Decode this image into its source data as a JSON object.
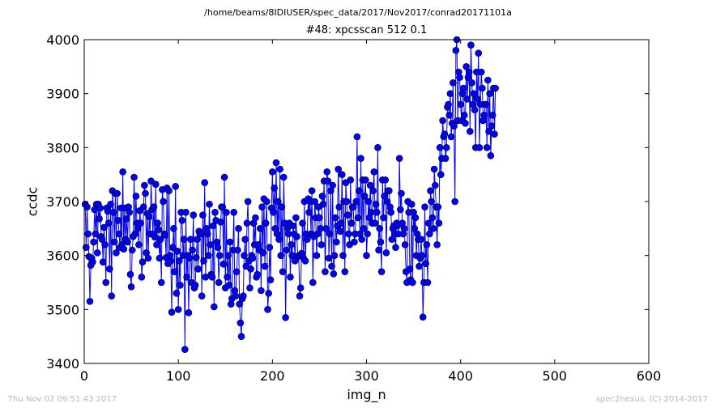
{
  "chart_data": {
    "type": "line",
    "suptitle": "/home/beams/8IDIUSER/spec_data/2017/Nov2017/conrad20171101a",
    "title": "#48: xpcsscan 512 0.1",
    "xlabel": "img_n",
    "ylabel": "ccdc",
    "xlim": [
      0,
      600
    ],
    "ylim": [
      3400,
      4000
    ],
    "xticks": [
      0,
      100,
      200,
      300,
      400,
      500,
      600
    ],
    "yticks": [
      3400,
      3500,
      3600,
      3700,
      3800,
      3900,
      4000
    ],
    "grid": false,
    "marker": "circle",
    "series": [
      {
        "color": "#0000ff",
        "x_start": 1,
        "y": [
          3695,
          3615,
          3690,
          3640,
          3598,
          3515,
          3582,
          3595,
          3588,
          3625,
          3685,
          3640,
          3695,
          3605,
          3695,
          3668,
          3688,
          3635,
          3630,
          3588,
          3652,
          3620,
          3550,
          3688,
          3682,
          3660,
          3575,
          3695,
          3525,
          3720,
          3680,
          3625,
          3715,
          3605,
          3715,
          3665,
          3640,
          3615,
          3688,
          3620,
          3755,
          3612,
          3688,
          3630,
          3668,
          3625,
          3690,
          3680,
          3565,
          3542,
          3610,
          3635,
          3745,
          3640,
          3710,
          3660,
          3650,
          3620,
          3683,
          3660,
          3560,
          3588,
          3690,
          3730,
          3715,
          3605,
          3678,
          3595,
          3672,
          3640,
          3738,
          3685,
          3640,
          3690,
          3634,
          3732,
          3620,
          3660,
          3648,
          3595,
          3630,
          3550,
          3722,
          3700,
          3640,
          3638,
          3596,
          3725,
          3585,
          3720,
          3600,
          3590,
          3495,
          3615,
          3650,
          3570,
          3728,
          3530,
          3608,
          3500,
          3590,
          3545,
          3680,
          3665,
          3600,
          3630,
          3426,
          3680,
          3560,
          3600,
          3494,
          3595,
          3630,
          3550,
          3610,
          3675,
          3540,
          3545,
          3596,
          3630,
          3575,
          3645,
          3640,
          3640,
          3525,
          3675,
          3590,
          3735,
          3560,
          3650,
          3640,
          3600,
          3695,
          3620,
          3565,
          3560,
          3655,
          3505,
          3680,
          3665,
          3625,
          3615,
          3550,
          3600,
          3662,
          3690,
          3690,
          3584,
          3745,
          3540,
          3680,
          3560,
          3600,
          3545,
          3625,
          3510,
          3520,
          3610,
          3680,
          3535,
          3525,
          3570,
          3610,
          3650,
          3510,
          3475,
          3450,
          3520,
          3525,
          3600,
          3630,
          3580,
          3660,
          3700,
          3590,
          3540,
          3575,
          3600,
          3595,
          3660,
          3620,
          3670,
          3560,
          3565,
          3620,
          3610,
          3650,
          3535,
          3690,
          3605,
          3705,
          3580,
          3660,
          3700,
          3500,
          3530,
          3615,
          3555,
          3688,
          3755,
          3680,
          3725,
          3650,
          3772,
          3640,
          3700,
          3630,
          3760,
          3600,
          3690,
          3570,
          3745,
          3660,
          3485,
          3610,
          3650,
          3640,
          3660,
          3560,
          3620,
          3600,
          3655,
          3640,
          3590,
          3670,
          3635,
          3598,
          3600,
          3525,
          3540,
          3604,
          3660,
          3595,
          3700,
          3590,
          3640,
          3630,
          3705,
          3680,
          3700,
          3640,
          3720,
          3550,
          3635,
          3700,
          3670,
          3600,
          3640,
          3690,
          3670,
          3650,
          3620,
          3710,
          3695,
          3738,
          3570,
          3650,
          3755,
          3738,
          3595,
          3640,
          3720,
          3580,
          3730,
          3566,
          3600,
          3670,
          3625,
          3655,
          3760,
          3690,
          3645,
          3660,
          3750,
          3600,
          3700,
          3570,
          3735,
          3700,
          3675,
          3640,
          3620,
          3740,
          3660,
          3690,
          3690,
          3625,
          3640,
          3700,
          3820,
          3670,
          3720,
          3640,
          3780,
          3630,
          3740,
          3650,
          3710,
          3740,
          3600,
          3640,
          3700,
          3670,
          3730,
          3680,
          3660,
          3720,
          3755,
          3660,
          3695,
          3680,
          3800,
          3610,
          3650,
          3625,
          3570,
          3740,
          3670,
          3710,
          3740,
          3605,
          3700,
          3720,
          3720,
          3690,
          3680,
          3630,
          3650,
          3655,
          3640,
          3615,
          3660,
          3655,
          3640,
          3780,
          3685,
          3715,
          3660,
          3640,
          3650,
          3620,
          3570,
          3550,
          3700,
          3680,
          3575,
          3555,
          3695,
          3550,
          3680,
          3650,
          3670,
          3600,
          3640,
          3630,
          3580,
          3595,
          3630,
          3600,
          3486,
          3550,
          3690,
          3585,
          3620,
          3550,
          3660,
          3640,
          3720,
          3700,
          3670,
          3650,
          3760,
          3730,
          3690,
          3620,
          3690,
          3660,
          3800,
          3750,
          3780,
          3850,
          3820,
          3825,
          3780,
          3800,
          3875,
          3880,
          3860,
          3900,
          3820,
          3845,
          3920,
          3840,
          3700,
          3980,
          4000,
          3850,
          3940,
          3930,
          3880,
          3850,
          3900,
          3910,
          3860,
          3845,
          3950,
          3890,
          3930,
          3940,
          3830,
          3990,
          3920,
          3880,
          3900,
          3870,
          3800,
          3940,
          3890,
          3975,
          3800,
          3880,
          3940,
          3910,
          3850,
          3860,
          3880,
          3880,
          3800,
          3925,
          3830,
          3900,
          3785,
          3840,
          3860,
          3910,
          3825,
          3910
        ]
      }
    ]
  },
  "footer": {
    "left": "Thu Nov 02 09:51:43 2017",
    "right": "spec2nexus, (C) 2014-2017"
  }
}
